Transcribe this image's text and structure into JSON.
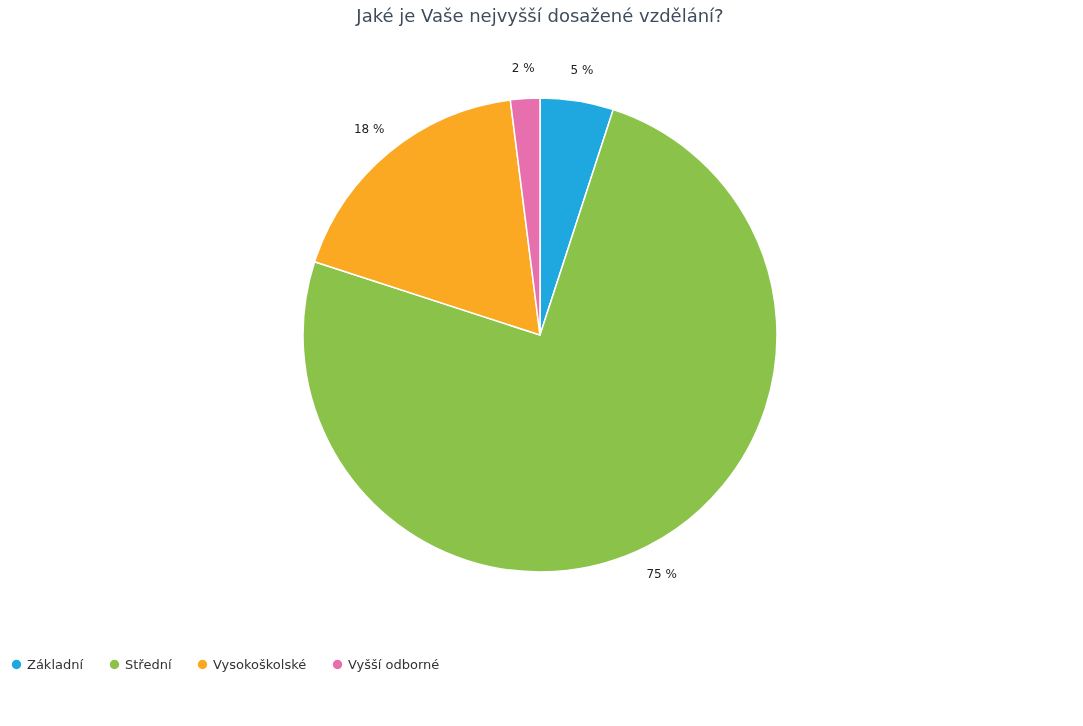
{
  "chart_data": {
    "type": "pie",
    "title": "Jaké je Vaše nejvyšší dosažené vzdělání?",
    "categories": [
      "Základní",
      "Střední",
      "Vysokoškolské",
      "Vyšší odborné"
    ],
    "values": [
      5,
      75,
      18,
      2
    ],
    "colors": [
      "#1fa8e0",
      "#8bc34a",
      "#fba823",
      "#e76fad"
    ],
    "value_labels": [
      "5 %",
      "75 %",
      "18 %",
      "2 %"
    ],
    "legend": "bottom left"
  }
}
